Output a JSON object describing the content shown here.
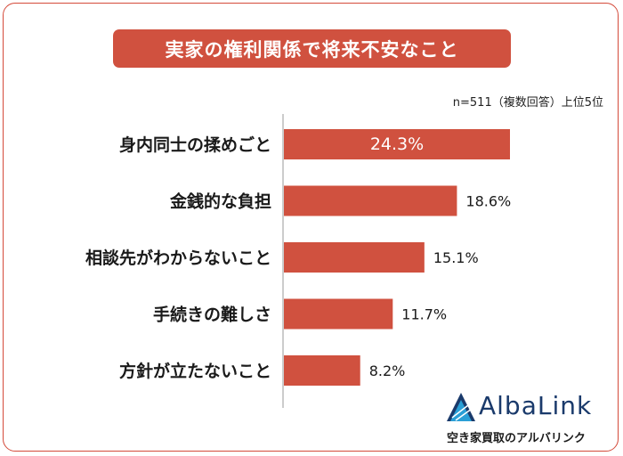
{
  "chart_data": {
    "type": "bar",
    "orientation": "horizontal",
    "title": "実家の権利関係で将来不安なこと",
    "note": "n=511（複数回答）上位5位",
    "categories": [
      "身内同士の揉めごと",
      "金銭的な負担",
      "相談先がわからないこと",
      "手続きの難しさ",
      "方針が立たないこと"
    ],
    "values": [
      24.3,
      18.6,
      15.1,
      11.7,
      8.2
    ],
    "value_labels": [
      "24.3%",
      "18.6%",
      "15.1%",
      "11.7%",
      "8.2%"
    ],
    "bar_color": "#d0513f",
    "grid": false,
    "legend": "none"
  },
  "logo": {
    "name": "AlbaLink",
    "subtitle": "空き家買取のアルバリンク",
    "colors": [
      "#1a3a6b",
      "#2a9fd6"
    ]
  }
}
